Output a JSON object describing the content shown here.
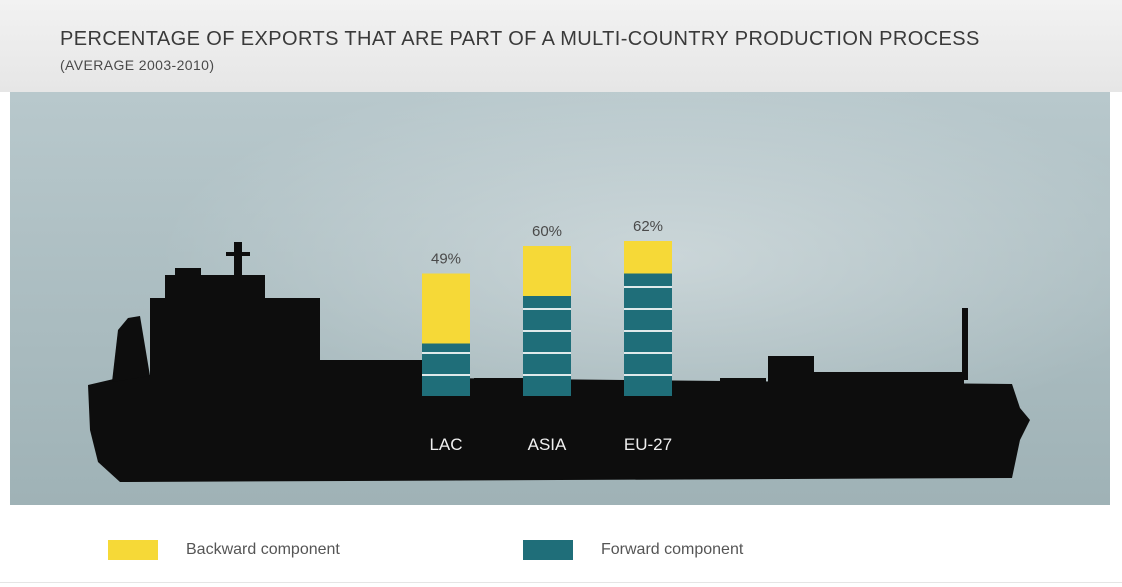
{
  "title": "PERCENTAGE OF EXPORTS THAT ARE PART OF A MULTI-COUNTRY PRODUCTION PROCESS",
  "subtitle": "(AVERAGE 2003-2010)",
  "legend": {
    "backward": "Backward component",
    "forward": "Forward component"
  },
  "colors": {
    "backward": "#f6d937",
    "forward": "#1f6e79",
    "ship": "#0d0d0d",
    "background": "#acbec2"
  },
  "chart_data": {
    "type": "bar",
    "stacked": true,
    "categories": [
      "LAC",
      "ASIA",
      "EU-27"
    ],
    "totals": [
      49,
      60,
      62
    ],
    "total_labels": [
      "49%",
      "60%",
      "62%"
    ],
    "series": [
      {
        "name": "Backward component",
        "values": [
          28,
          20,
          13
        ]
      },
      {
        "name": "Forward component",
        "values": [
          21,
          40,
          49
        ]
      }
    ],
    "title": "PERCENTAGE OF EXPORTS THAT ARE PART OF A MULTI-COUNTRY PRODUCTION PROCESS",
    "subtitle": "(AVERAGE 2003-2010)",
    "ylim": [
      0,
      62
    ],
    "grid": false,
    "legend_position": "bottom"
  }
}
